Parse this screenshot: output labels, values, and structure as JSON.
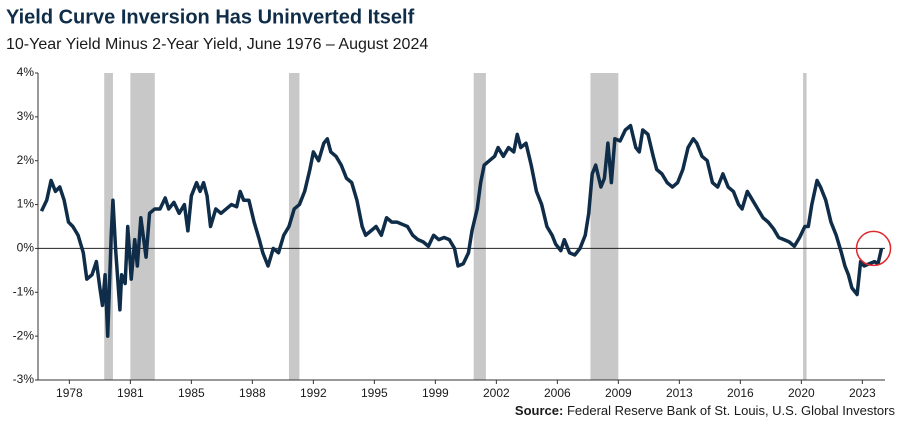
{
  "chart_data": {
    "type": "line",
    "title": "Yield Curve Inversion Has Uninverted Itself",
    "subtitle": "10-Year Yield Minus 2-Year Yield, June 1976 – August 2024",
    "source_label": "Source:",
    "source": "Federal Reserve Bank of St. Louis, U.S. Global Investors",
    "xlim": [
      1976.2,
      2024.8
    ],
    "xticks": [
      {
        "value": 1978.0,
        "label": "1978"
      },
      {
        "value": 1981.5,
        "label": "1981"
      },
      {
        "value": 1985.0,
        "label": "1985"
      },
      {
        "value": 1988.5,
        "label": "1988"
      },
      {
        "value": 1992.0,
        "label": "1992"
      },
      {
        "value": 1995.5,
        "label": "1995"
      },
      {
        "value": 1999.0,
        "label": "1999"
      },
      {
        "value": 2002.5,
        "label": "2002"
      },
      {
        "value": 2006.0,
        "label": "2006"
      },
      {
        "value": 2009.5,
        "label": "2009"
      },
      {
        "value": 2013.0,
        "label": "2013"
      },
      {
        "value": 2016.5,
        "label": "2016"
      },
      {
        "value": 2020.0,
        "label": "2020"
      },
      {
        "value": 2023.5,
        "label": "2023"
      }
    ],
    "ylim": [
      -3,
      4
    ],
    "yticks": [
      {
        "value": -3,
        "label": "-3%"
      },
      {
        "value": -2,
        "label": "-2%"
      },
      {
        "value": -1,
        "label": "-1%"
      },
      {
        "value": 0,
        "label": "0%"
      },
      {
        "value": 1,
        "label": "1%"
      },
      {
        "value": 2,
        "label": "2%"
      },
      {
        "value": 3,
        "label": "3%"
      },
      {
        "value": 4,
        "label": "4%"
      }
    ],
    "recessions": [
      [
        1980.0,
        1980.5
      ],
      [
        1981.5,
        1982.9
      ],
      [
        1990.6,
        1991.2
      ],
      [
        2001.2,
        2001.9
      ],
      [
        2007.9,
        2009.5
      ],
      [
        2020.1,
        2020.3
      ]
    ],
    "recession_color": "#c8c8c8",
    "highlight_color": "#e0292f",
    "x": [
      1976.4,
      1976.7,
      1976.95,
      1977.2,
      1977.45,
      1977.7,
      1977.95,
      1978.2,
      1978.5,
      1978.8,
      1979.0,
      1979.3,
      1979.55,
      1979.75,
      1979.9,
      1980.05,
      1980.2,
      1980.4,
      1980.5,
      1980.65,
      1980.9,
      1981.0,
      1981.2,
      1981.35,
      1981.55,
      1981.75,
      1981.9,
      1982.1,
      1982.4,
      1982.6,
      1982.9,
      1983.2,
      1983.5,
      1983.7,
      1984.0,
      1984.3,
      1984.6,
      1984.8,
      1985.0,
      1985.3,
      1985.5,
      1985.7,
      1985.9,
      1986.1,
      1986.4,
      1986.7,
      1987.0,
      1987.3,
      1987.6,
      1987.8,
      1988.0,
      1988.3,
      1988.6,
      1988.9,
      1989.1,
      1989.4,
      1989.7,
      1990.0,
      1990.3,
      1990.6,
      1990.9,
      1991.2,
      1991.5,
      1991.8,
      1992.0,
      1992.3,
      1992.6,
      1992.8,
      1993.0,
      1993.3,
      1993.6,
      1993.9,
      1994.2,
      1994.5,
      1994.8,
      1995.0,
      1995.3,
      1995.6,
      1995.9,
      1996.2,
      1996.5,
      1996.8,
      1997.1,
      1997.4,
      1997.7,
      1998.0,
      1998.3,
      1998.6,
      1998.9,
      1999.2,
      1999.5,
      1999.8,
      2000.1,
      2000.3,
      2000.6,
      2000.9,
      2001.1,
      2001.4,
      2001.6,
      2001.8,
      2002.1,
      2002.4,
      2002.6,
      2002.9,
      2003.2,
      2003.5,
      2003.7,
      2003.9,
      2004.2,
      2004.5,
      2004.8,
      2005.1,
      2005.4,
      2005.7,
      2005.9,
      2006.2,
      2006.4,
      2006.7,
      2007.0,
      2007.3,
      2007.6,
      2007.8,
      2008.0,
      2008.2,
      2008.5,
      2008.7,
      2008.9,
      2009.1,
      2009.3,
      2009.6,
      2009.9,
      2010.2,
      2010.5,
      2010.7,
      2010.9,
      2011.2,
      2011.5,
      2011.7,
      2012.0,
      2012.3,
      2012.6,
      2012.9,
      2013.2,
      2013.5,
      2013.8,
      2014.0,
      2014.3,
      2014.6,
      2014.9,
      2015.2,
      2015.5,
      2015.8,
      2016.1,
      2016.4,
      2016.6,
      2016.9,
      2017.2,
      2017.5,
      2017.8,
      2018.1,
      2018.4,
      2018.7,
      2019.0,
      2019.3,
      2019.6,
      2019.9,
      2020.2,
      2020.4,
      2020.6,
      2020.9,
      2021.1,
      2021.4,
      2021.7,
      2022.0,
      2022.3,
      2022.5,
      2022.7,
      2022.9,
      2023.2,
      2023.4,
      2023.6,
      2023.9,
      2024.2,
      2024.4,
      2024.6
    ],
    "series": [
      {
        "name": "10-Year Yield Minus 2-Year Yield",
        "color": "#0f2d48",
        "values": [
          0.85,
          1.1,
          1.55,
          1.3,
          1.4,
          1.1,
          0.6,
          0.5,
          0.3,
          -0.1,
          -0.7,
          -0.6,
          -0.3,
          -0.9,
          -1.3,
          -0.6,
          -2.0,
          0.3,
          1.1,
          0.0,
          -1.4,
          -0.6,
          -0.8,
          0.5,
          -0.7,
          0.2,
          -0.4,
          0.7,
          -0.2,
          0.8,
          0.9,
          0.9,
          1.15,
          0.9,
          1.05,
          0.8,
          1.0,
          0.4,
          1.2,
          1.5,
          1.3,
          1.5,
          1.2,
          0.5,
          0.9,
          0.8,
          0.9,
          1.0,
          0.95,
          1.3,
          1.1,
          1.1,
          0.6,
          0.2,
          -0.1,
          -0.4,
          0.0,
          -0.1,
          0.3,
          0.5,
          0.9,
          1.0,
          1.3,
          1.8,
          2.2,
          2.0,
          2.4,
          2.5,
          2.2,
          2.1,
          1.9,
          1.6,
          1.5,
          1.1,
          0.5,
          0.3,
          0.4,
          0.5,
          0.3,
          0.7,
          0.6,
          0.6,
          0.55,
          0.5,
          0.3,
          0.2,
          0.15,
          0.05,
          0.3,
          0.2,
          0.25,
          0.2,
          0.0,
          -0.4,
          -0.35,
          -0.1,
          0.4,
          0.9,
          1.5,
          1.9,
          2.0,
          2.1,
          2.3,
          2.1,
          2.3,
          2.2,
          2.6,
          2.3,
          2.4,
          1.9,
          1.3,
          1.0,
          0.5,
          0.3,
          0.1,
          -0.05,
          0.2,
          -0.1,
          -0.15,
          0.0,
          0.3,
          0.8,
          1.7,
          1.9,
          1.4,
          1.6,
          2.4,
          1.5,
          2.5,
          2.45,
          2.7,
          2.8,
          2.3,
          2.2,
          2.7,
          2.6,
          2.1,
          1.8,
          1.7,
          1.5,
          1.4,
          1.5,
          1.8,
          2.3,
          2.5,
          2.4,
          2.1,
          2.0,
          1.5,
          1.4,
          1.7,
          1.4,
          1.3,
          1.0,
          0.9,
          1.3,
          1.1,
          0.9,
          0.7,
          0.6,
          0.45,
          0.25,
          0.2,
          0.15,
          0.05,
          0.25,
          0.5,
          0.5,
          1.0,
          1.55,
          1.4,
          1.1,
          0.6,
          0.3,
          -0.1,
          -0.4,
          -0.6,
          -0.9,
          -1.05,
          -0.3,
          -0.4,
          -0.35,
          -0.3,
          -0.35,
          0.0
        ]
      }
    ]
  }
}
